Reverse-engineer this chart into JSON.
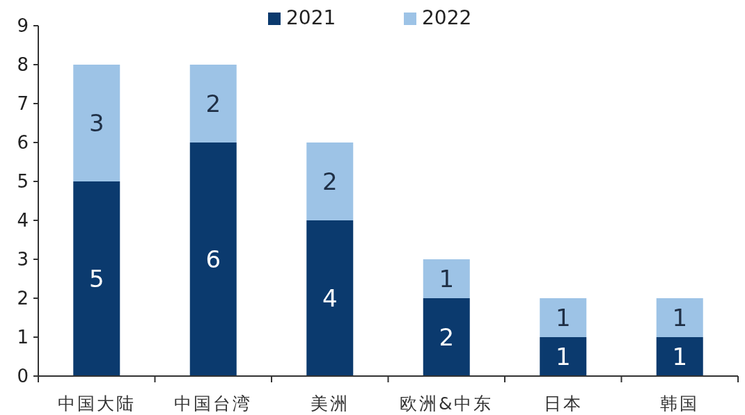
{
  "chart_data": {
    "type": "bar",
    "stacked": true,
    "categories": [
      "中国大陆",
      "中国台湾",
      "美洲",
      "欧洲&中东",
      "日本",
      "韩国"
    ],
    "series": [
      {
        "name": "2021",
        "color": "#0b3a6e",
        "values": [
          5,
          6,
          4,
          2,
          1,
          1
        ]
      },
      {
        "name": "2022",
        "color": "#9dc3e6",
        "values": [
          3,
          2,
          2,
          1,
          1,
          1
        ]
      }
    ],
    "ylim": [
      0,
      9
    ],
    "yticks": [
      0,
      1,
      2,
      3,
      4,
      5,
      6,
      7,
      8,
      9
    ],
    "data_labels": true,
    "legend": "top",
    "grid": false
  }
}
